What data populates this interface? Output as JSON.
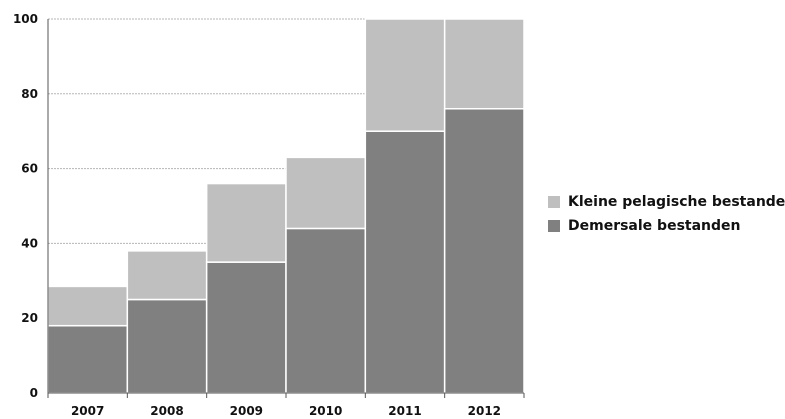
{
  "chart_data": {
    "type": "bar",
    "stacked": true,
    "categories": [
      "2007",
      "2008",
      "2009",
      "2010",
      "2011",
      "2012"
    ],
    "series": [
      {
        "name": "Demersale bestanden",
        "values": [
          18,
          25,
          35,
          44,
          70,
          76
        ],
        "color": "#808080"
      },
      {
        "name": "Kleine pelagische bestanden",
        "values": [
          10.5,
          13,
          21,
          19,
          30,
          24
        ],
        "color": "#bfbfbf"
      }
    ],
    "yticks": [
      "0",
      "20",
      "40",
      "60",
      "80",
      "100"
    ],
    "ylim": [
      0,
      100
    ],
    "grid": true,
    "legend_position": "right"
  },
  "legend": {
    "items": [
      {
        "label": "Kleine pelagische bestanden",
        "color": "#bfbfbf"
      },
      {
        "label": "Demersale bestanden",
        "color": "#808080"
      }
    ]
  }
}
